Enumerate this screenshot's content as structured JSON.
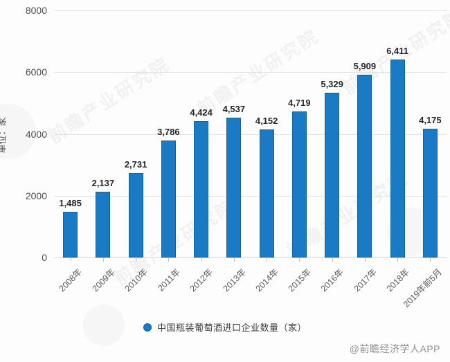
{
  "chart_data": {
    "type": "bar",
    "title": "",
    "ylabel": "单位：家",
    "categories": [
      "2008年",
      "2009年",
      "2010年",
      "2011年",
      "2012年",
      "2013年",
      "2014年",
      "2015年",
      "2016年",
      "2017年",
      "2018年",
      "2019年前5月"
    ],
    "values": [
      1485,
      2137,
      2731,
      3786,
      4424,
      4537,
      4152,
      4719,
      5329,
      5909,
      6411,
      4175
    ],
    "value_labels": [
      "1,485",
      "2,137",
      "2,731",
      "3,786",
      "4,424",
      "4,537",
      "4,152",
      "4,719",
      "5,329",
      "5,909",
      "6,411",
      "4,175"
    ],
    "ylim": [
      0,
      8000
    ],
    "yticks": [
      0,
      2000,
      4000,
      6000,
      8000
    ],
    "grid": true,
    "legend": "中国瓶装葡萄酒进口企业数量（家）",
    "legend_position": "bottom-center",
    "bar_color": "#1a7ac4",
    "bar_border_color": "#11639e"
  },
  "watermark": {
    "text": "前瞻产业研究院"
  },
  "footer": {
    "credit": "@前瞻经济学人APP"
  }
}
